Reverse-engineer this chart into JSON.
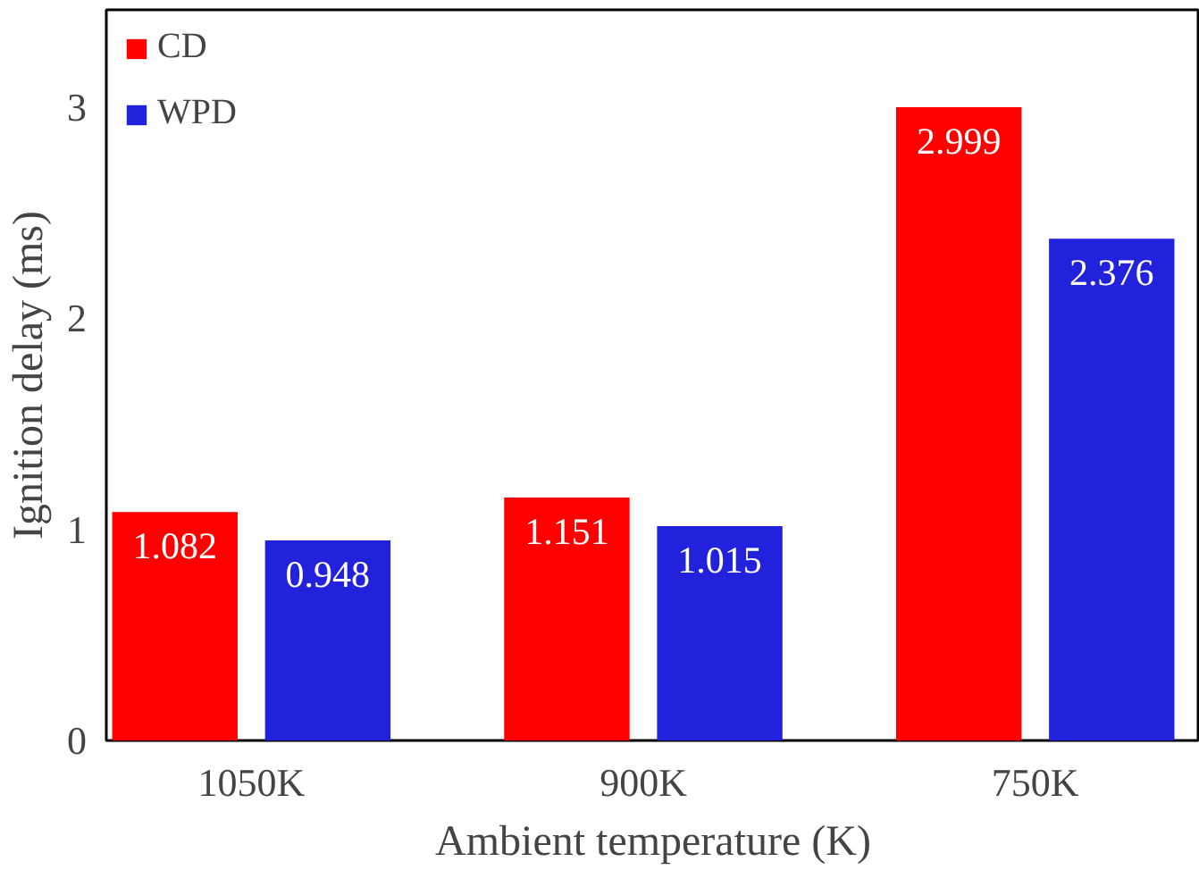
{
  "chart_data": {
    "type": "bar",
    "xlabel": "Ambient temperature (K)",
    "ylabel": "Ignition delay (ms)",
    "categories": [
      "1050K",
      "900K",
      "750K"
    ],
    "series": [
      {
        "name": "CD",
        "color": "#ff0000",
        "values": [
          1.082,
          1.151,
          2.999
        ]
      },
      {
        "name": "WPD",
        "color": "#2222dd",
        "values": [
          0.948,
          1.015,
          2.376
        ]
      }
    ],
    "ylim": [
      0,
      3.46
    ],
    "yticks": [
      0,
      1,
      2,
      3
    ],
    "data_labels": true,
    "legend": "top left",
    "grid": false
  }
}
